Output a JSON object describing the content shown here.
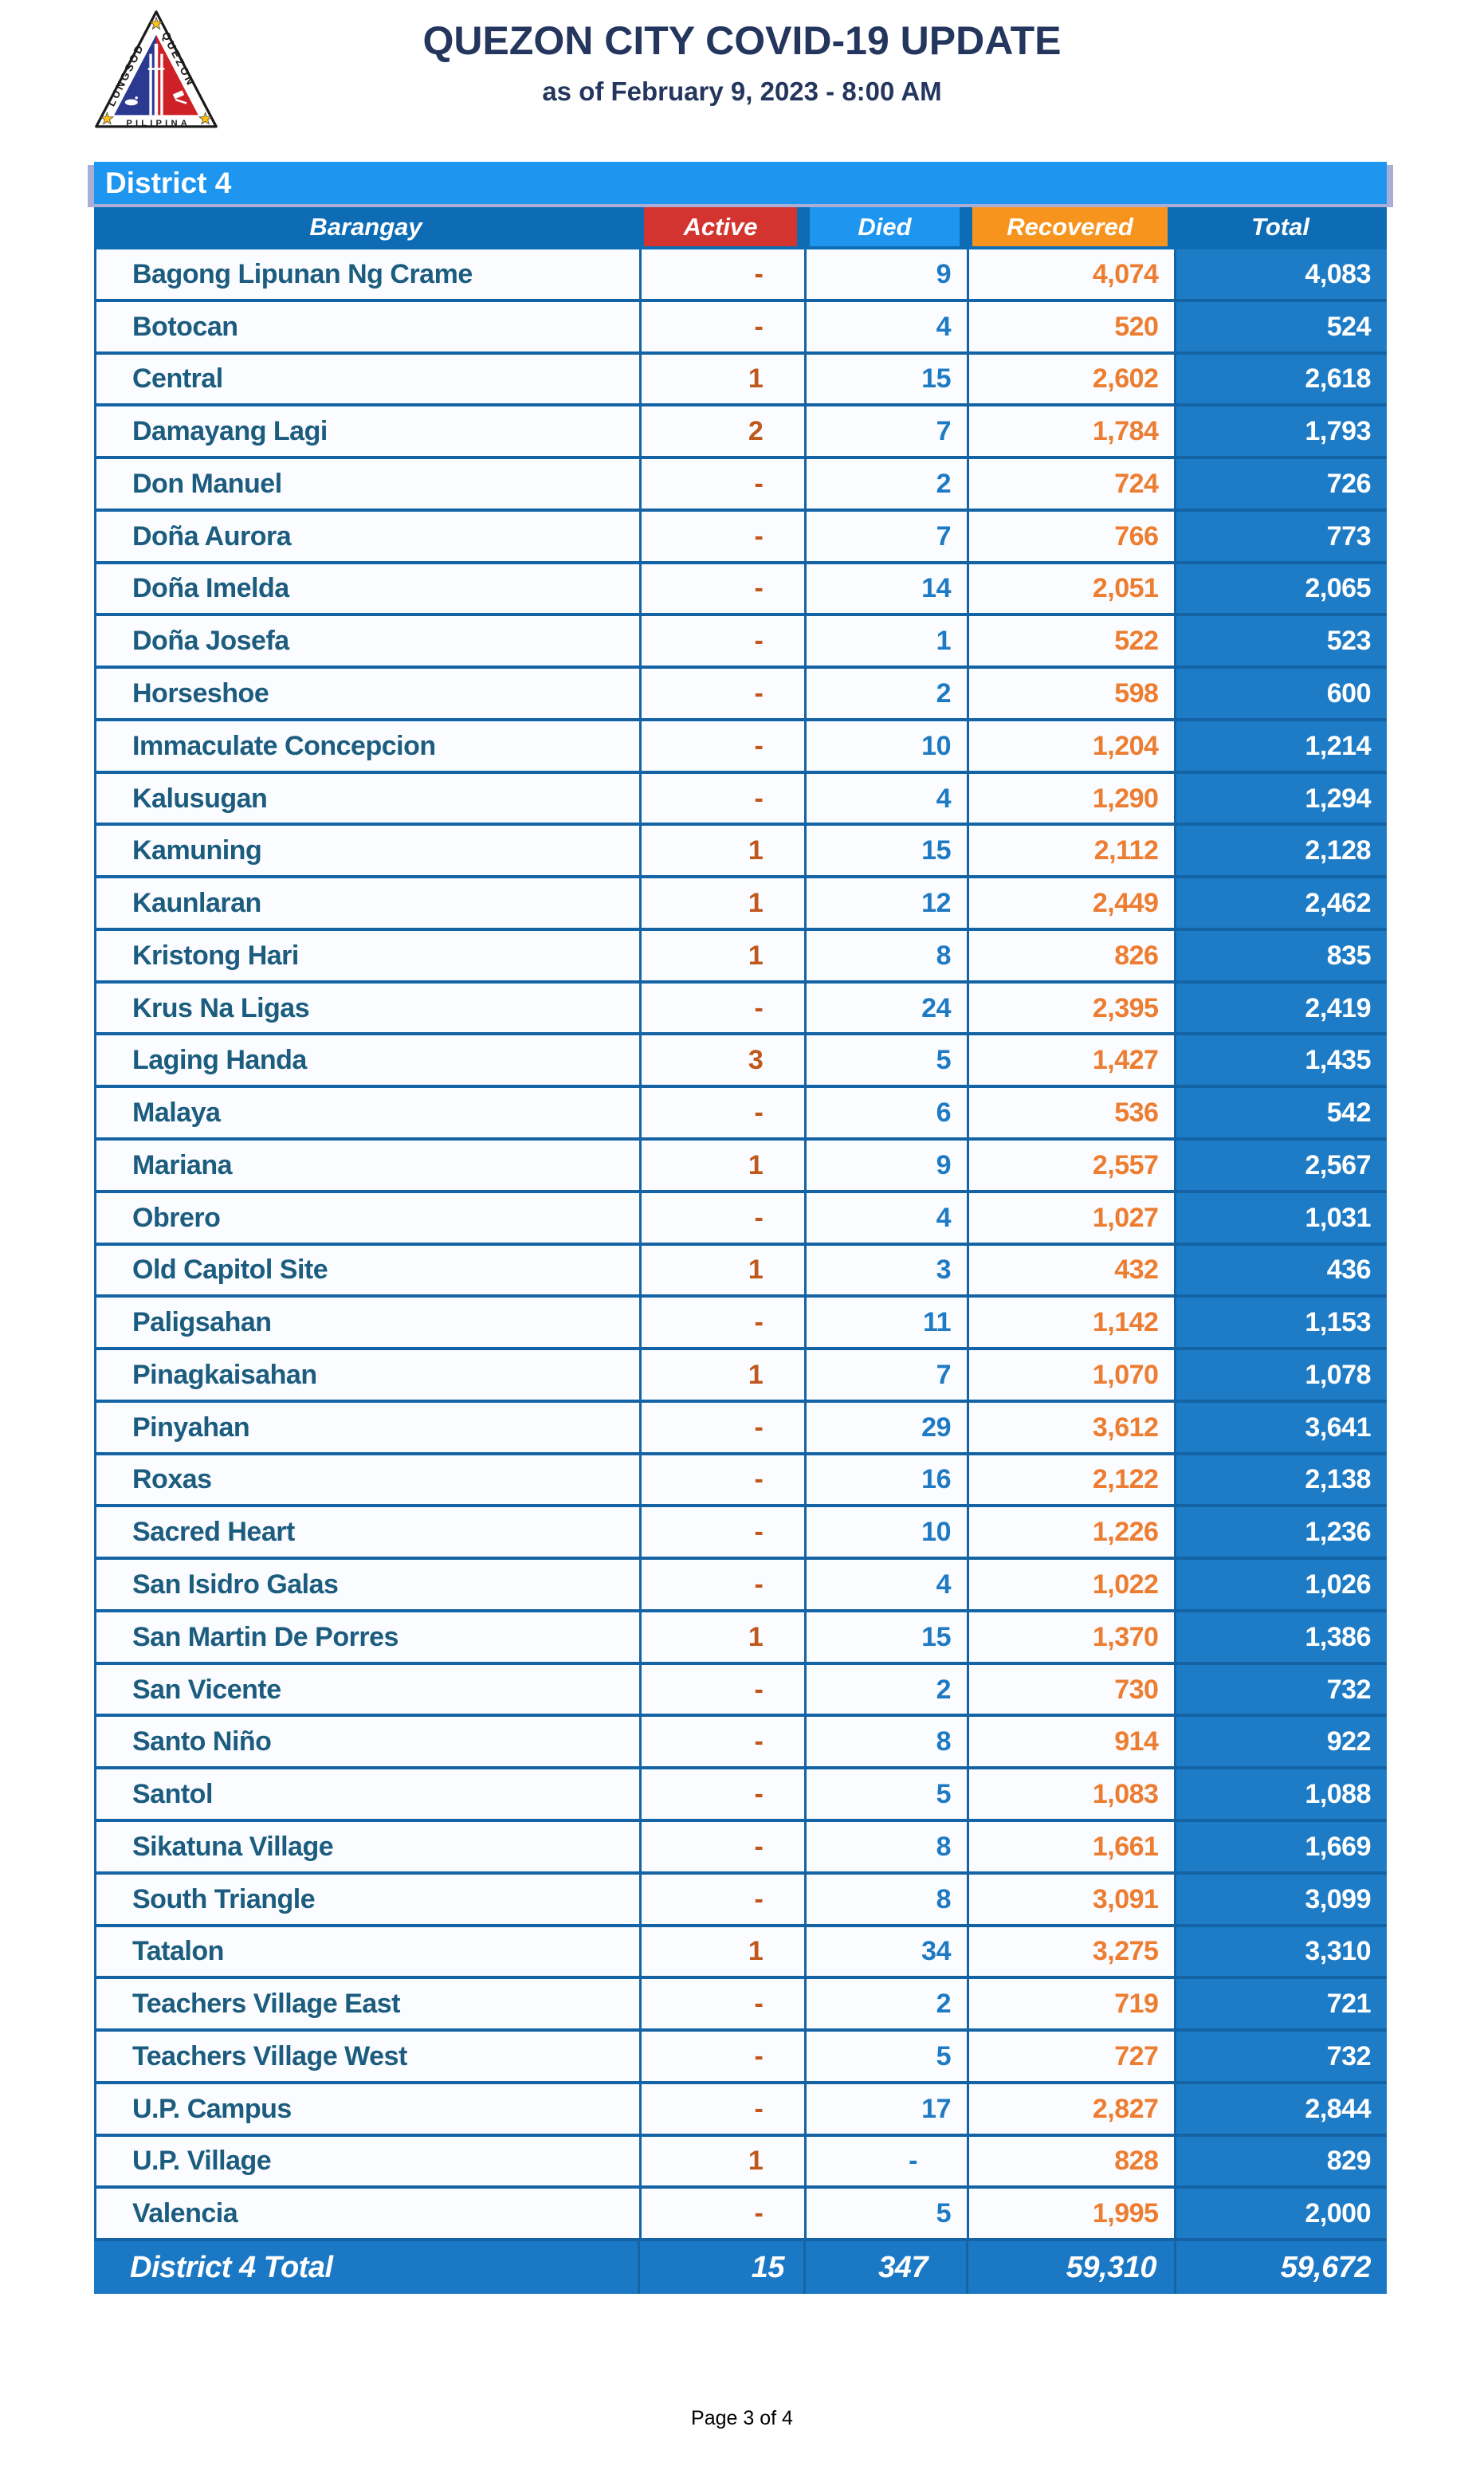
{
  "page": {
    "title": "QUEZON CITY COVID-19 UPDATE",
    "subtitle": "as of February 9, 2023 - 8:00 AM",
    "footer": "Page 3 of 4"
  },
  "logo": {
    "left": "LUNGSOD",
    "right": "QUEZON",
    "bottom": "PILIPINAS"
  },
  "table": {
    "banner": "District 4",
    "columns": [
      "Barangay",
      "Active",
      "Died",
      "Recovered",
      "Total"
    ],
    "rows": [
      [
        "Bagong Lipunan Ng Crame",
        "-",
        "9",
        "4,074",
        "4,083"
      ],
      [
        "Botocan",
        "-",
        "4",
        "520",
        "524"
      ],
      [
        "Central",
        "1",
        "15",
        "2,602",
        "2,618"
      ],
      [
        "Damayang Lagi",
        "2",
        "7",
        "1,784",
        "1,793"
      ],
      [
        "Don Manuel",
        "-",
        "2",
        "724",
        "726"
      ],
      [
        "Doña Aurora",
        "-",
        "7",
        "766",
        "773"
      ],
      [
        "Doña Imelda",
        "-",
        "14",
        "2,051",
        "2,065"
      ],
      [
        "Doña Josefa",
        "-",
        "1",
        "522",
        "523"
      ],
      [
        "Horseshoe",
        "-",
        "2",
        "598",
        "600"
      ],
      [
        "Immaculate Concepcion",
        "-",
        "10",
        "1,204",
        "1,214"
      ],
      [
        "Kalusugan",
        "-",
        "4",
        "1,290",
        "1,294"
      ],
      [
        "Kamuning",
        "1",
        "15",
        "2,112",
        "2,128"
      ],
      [
        "Kaunlaran",
        "1",
        "12",
        "2,449",
        "2,462"
      ],
      [
        "Kristong Hari",
        "1",
        "8",
        "826",
        "835"
      ],
      [
        "Krus Na Ligas",
        "-",
        "24",
        "2,395",
        "2,419"
      ],
      [
        "Laging Handa",
        "3",
        "5",
        "1,427",
        "1,435"
      ],
      [
        "Malaya",
        "-",
        "6",
        "536",
        "542"
      ],
      [
        "Mariana",
        "1",
        "9",
        "2,557",
        "2,567"
      ],
      [
        "Obrero",
        "-",
        "4",
        "1,027",
        "1,031"
      ],
      [
        "Old Capitol Site",
        "1",
        "3",
        "432",
        "436"
      ],
      [
        "Paligsahan",
        "-",
        "11",
        "1,142",
        "1,153"
      ],
      [
        "Pinagkaisahan",
        "1",
        "7",
        "1,070",
        "1,078"
      ],
      [
        "Pinyahan",
        "-",
        "29",
        "3,612",
        "3,641"
      ],
      [
        "Roxas",
        "-",
        "16",
        "2,122",
        "2,138"
      ],
      [
        "Sacred Heart",
        "-",
        "10",
        "1,226",
        "1,236"
      ],
      [
        "San Isidro Galas",
        "-",
        "4",
        "1,022",
        "1,026"
      ],
      [
        "San Martin De Porres",
        "1",
        "15",
        "1,370",
        "1,386"
      ],
      [
        "San Vicente",
        "-",
        "2",
        "730",
        "732"
      ],
      [
        "Santo Niño",
        "-",
        "8",
        "914",
        "922"
      ],
      [
        "Santol",
        "-",
        "5",
        "1,083",
        "1,088"
      ],
      [
        "Sikatuna Village",
        "-",
        "8",
        "1,661",
        "1,669"
      ],
      [
        "South Triangle",
        "-",
        "8",
        "3,091",
        "3,099"
      ],
      [
        "Tatalon",
        "1",
        "34",
        "3,275",
        "3,310"
      ],
      [
        "Teachers Village East",
        "-",
        "2",
        "719",
        "721"
      ],
      [
        "Teachers Village West",
        "-",
        "5",
        "727",
        "732"
      ],
      [
        "U.P. Campus",
        "-",
        "17",
        "2,827",
        "2,844"
      ],
      [
        "U.P. Village",
        "1",
        "-",
        "828",
        "829"
      ],
      [
        "Valencia",
        "-",
        "5",
        "1,995",
        "2,000"
      ]
    ],
    "total_row": {
      "label": "District 4 Total",
      "active": "15",
      "died": "347",
      "recovered": "59,310",
      "total": "59,672"
    }
  },
  "colors": {
    "title_navy": "#24365E",
    "banner_blue": "#1E96F0",
    "header_dark_blue": "#0E6CB4",
    "active_red": "#D3342F",
    "died_blue": "#1E96F0",
    "recovered_orange": "#F7941E",
    "total_cell_blue": "#1E7CC6",
    "grid_blue": "#1463A5",
    "row_bg": "#FAFCFF",
    "barangay_text": "#1C5C7E",
    "active_text": "#C0571B",
    "died_text": "#1F7AC4",
    "recovered_text": "#ED7D31"
  }
}
